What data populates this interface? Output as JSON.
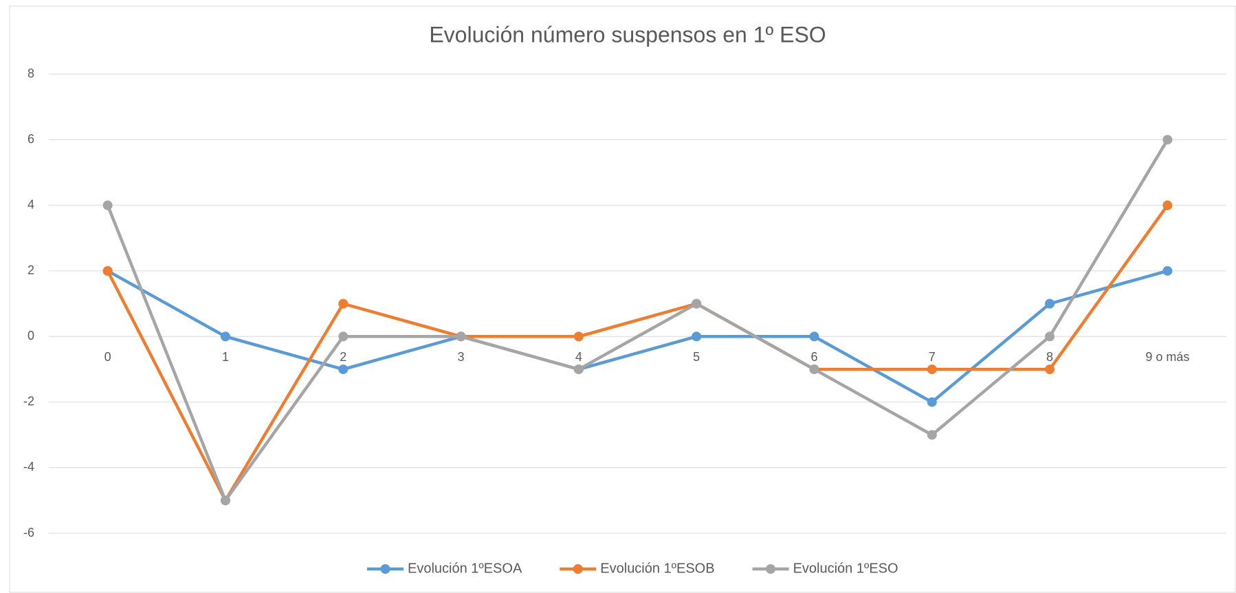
{
  "chart_data": {
    "type": "line",
    "title": "Evolución número suspensos en 1º ESO",
    "categories": [
      "0",
      "1",
      "2",
      "3",
      "4",
      "5",
      "6",
      "7",
      "8",
      "9 o más"
    ],
    "series": [
      {
        "name": "Evolución 1ºESOA",
        "color": "#5b9bd5",
        "values": [
          2,
          0,
          -1,
          0,
          -1,
          0,
          0,
          -2,
          1,
          2
        ]
      },
      {
        "name": "Evolución 1ºESOB",
        "color": "#ed7d31",
        "values": [
          2,
          -5,
          1,
          0,
          0,
          1,
          -1,
          -1,
          -1,
          4
        ]
      },
      {
        "name": "Evolución 1ºESO",
        "color": "#a5a5a5",
        "values": [
          4,
          -5,
          0,
          0,
          -1,
          1,
          -1,
          -3,
          0,
          6
        ]
      }
    ],
    "ylim": [
      -6,
      8
    ],
    "yticks": [
      -6,
      -4,
      -2,
      0,
      2,
      4,
      6,
      8
    ],
    "grid": true,
    "legend": "bottom"
  }
}
